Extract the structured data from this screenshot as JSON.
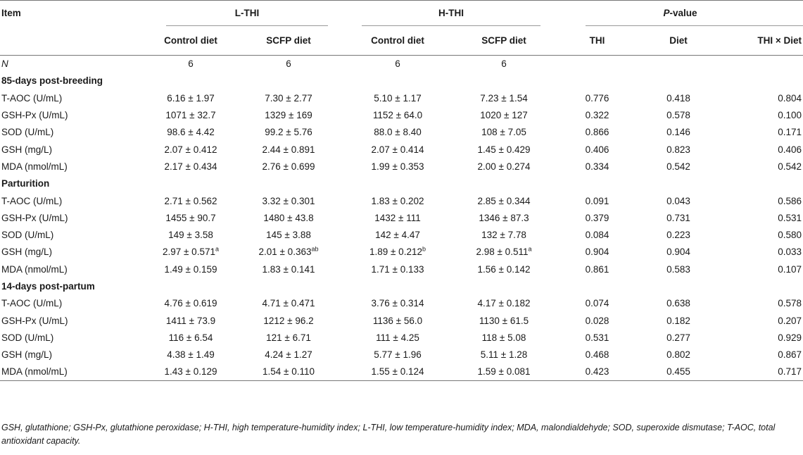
{
  "header": {
    "item": "Item",
    "groups": [
      {
        "label": "L-THI"
      },
      {
        "label": "H-THI"
      }
    ],
    "pvalue_italic": "P",
    "pvalue_rest": "-value",
    "subs": [
      "Control diet",
      "SCFP diet",
      "Control diet",
      "SCFP diet",
      "THI",
      "Diet",
      "THI × Diet"
    ]
  },
  "n_row": {
    "label": "N",
    "values": [
      "6",
      "6",
      "6",
      "6"
    ]
  },
  "sections": [
    {
      "title": "85-days post-breeding",
      "rows": [
        {
          "label": "T-AOC (U/mL)",
          "v": [
            "6.16 ± 1.97",
            "7.30 ± 2.77",
            "5.10 ± 1.17",
            "7.23 ± 1.54"
          ],
          "p": [
            "0.776",
            "0.418",
            "0.804"
          ]
        },
        {
          "label": "GSH-Px (U/mL)",
          "v": [
            "1071 ± 32.7",
            "1329 ± 169",
            "1152 ± 64.0",
            "1020 ± 127"
          ],
          "p": [
            "0.322",
            "0.578",
            "0.100"
          ]
        },
        {
          "label": "SOD (U/mL)",
          "v": [
            "98.6 ± 4.42",
            "99.2 ± 5.76",
            "88.0 ± 8.40",
            "108 ± 7.05"
          ],
          "p": [
            "0.866",
            "0.146",
            "0.171"
          ]
        },
        {
          "label": "GSH (mg/L)",
          "v": [
            "2.07 ± 0.412",
            "2.44 ± 0.891",
            "2.07 ± 0.414",
            "1.45 ± 0.429"
          ],
          "p": [
            "0.406",
            "0.823",
            "0.406"
          ]
        },
        {
          "label": "MDA (nmol/mL)",
          "v": [
            "2.17 ± 0.434",
            "2.76 ± 0.699",
            "1.99 ± 0.353",
            "2.00 ± 0.274"
          ],
          "p": [
            "0.334",
            "0.542",
            "0.542"
          ]
        }
      ]
    },
    {
      "title": "Parturition",
      "rows": [
        {
          "label": "T-AOC (U/mL)",
          "v": [
            "2.71 ± 0.562",
            "3.32 ± 0.301",
            "1.83 ± 0.202",
            "2.85 ± 0.344"
          ],
          "p": [
            "0.091",
            "0.043",
            "0.586"
          ]
        },
        {
          "label": "GSH-Px (U/mL)",
          "v": [
            "1455 ± 90.7",
            "1480 ± 43.8",
            "1432 ± 111",
            "1346 ± 87.3"
          ],
          "p": [
            "0.379",
            "0.731",
            "0.531"
          ]
        },
        {
          "label": "SOD (U/mL)",
          "v": [
            "149 ± 3.58",
            "145 ± 3.88",
            "142 ± 4.47",
            "132 ± 7.78"
          ],
          "p": [
            "0.084",
            "0.223",
            "0.580"
          ]
        },
        {
          "label": "GSH (mg/L)",
          "v": [
            "2.97 ± 0.571",
            "2.01 ± 0.363",
            "1.89 ± 0.212",
            "2.98 ± 0.511"
          ],
          "sup": [
            "a",
            "ab",
            "b",
            "a"
          ],
          "p": [
            "0.904",
            "0.904",
            "0.033"
          ]
        },
        {
          "label": "MDA (nmol/mL)",
          "v": [
            "1.49 ± 0.159",
            "1.83 ± 0.141",
            "1.71 ± 0.133",
            "1.56 ± 0.142"
          ],
          "p": [
            "0.861",
            "0.583",
            "0.107"
          ]
        }
      ]
    },
    {
      "title": "14-days post-partum",
      "rows": [
        {
          "label": "T-AOC (U/mL)",
          "v": [
            "4.76 ± 0.619",
            "4.71 ± 0.471",
            "3.76 ± 0.314",
            "4.17 ± 0.182"
          ],
          "p": [
            "0.074",
            "0.638",
            "0.578"
          ]
        },
        {
          "label": "GSH-Px (U/mL)",
          "v": [
            "1411 ± 73.9",
            "1212 ± 96.2",
            "1136 ± 56.0",
            "1130 ± 61.5"
          ],
          "p": [
            "0.028",
            "0.182",
            "0.207"
          ]
        },
        {
          "label": "SOD (U/mL)",
          "v": [
            "116 ± 6.54",
            "121 ± 6.71",
            "111 ± 4.25",
            "118 ± 5.08"
          ],
          "p": [
            "0.531",
            "0.277",
            "0.929"
          ]
        },
        {
          "label": "GSH (mg/L)",
          "v": [
            "4.38 ± 1.49",
            "4.24 ± 1.27",
            "5.77 ± 1.96",
            "5.11 ± 1.28"
          ],
          "p": [
            "0.468",
            "0.802",
            "0.867"
          ]
        },
        {
          "label": "MDA (nmol/mL)",
          "v": [
            "1.43 ± 0.129",
            "1.54 ± 0.110",
            "1.55 ± 0.124",
            "1.59 ± 0.081"
          ],
          "p": [
            "0.423",
            "0.455",
            "0.717"
          ]
        }
      ]
    }
  ],
  "footnote": "GSH, glutathione; GSH-Px, glutathione peroxidase; H-THI, high temperature-humidity index; L-THI, low temperature-humidity index; MDA, malondialdehyde; SOD, superoxide dismutase; T-AOC, total antioxidant capacity."
}
